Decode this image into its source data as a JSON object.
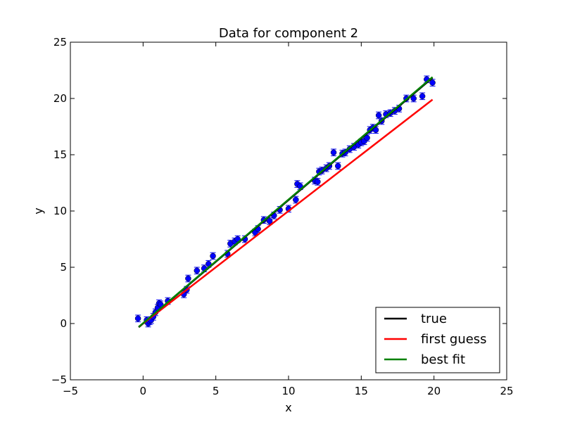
{
  "chart_data": {
    "type": "scatter",
    "title": "Data for component 2",
    "xlabel": "x",
    "ylabel": "y",
    "xlim": [
      -5,
      25
    ],
    "ylim": [
      -5,
      25
    ],
    "xticks": [
      "−5",
      "0",
      "5",
      "10",
      "15",
      "20",
      "25"
    ],
    "yticks": [
      "−5",
      "0",
      "5",
      "10",
      "15",
      "20",
      "25"
    ],
    "xtick_values": [
      -5,
      0,
      5,
      10,
      15,
      20,
      25
    ],
    "ytick_values": [
      -5,
      0,
      5,
      10,
      15,
      20,
      25
    ],
    "grid": false,
    "legend_position": "lower-right",
    "points": {
      "color": "#0000ff",
      "error": 0.3,
      "x": [
        -0.35,
        0.25,
        0.35,
        0.45,
        0.55,
        0.7,
        0.85,
        1.0,
        1.1,
        1.2,
        1.7,
        2.8,
        3.0,
        3.1,
        3.7,
        4.2,
        4.5,
        4.8,
        5.8,
        6.0,
        6.3,
        6.5,
        7.0,
        7.7,
        7.9,
        8.3,
        8.7,
        9.0,
        9.4,
        10.0,
        10.5,
        10.6,
        10.8,
        11.8,
        12.0,
        12.1,
        12.3,
        12.6,
        12.8,
        13.1,
        13.4,
        13.7,
        13.9,
        14.2,
        14.5,
        14.8,
        15.0,
        15.2,
        15.4,
        15.6,
        15.8,
        16.0,
        16.2,
        16.4,
        16.7,
        17.0,
        17.3,
        17.6,
        18.1,
        18.6,
        19.2,
        19.5,
        19.9
      ],
      "y": [
        0.45,
        0.3,
        0.0,
        0.2,
        0.3,
        0.6,
        1.0,
        1.4,
        1.8,
        1.7,
        2.0,
        2.6,
        3.0,
        4.0,
        4.7,
        4.9,
        5.3,
        6.0,
        6.2,
        7.1,
        7.3,
        7.5,
        7.5,
        8.1,
        8.4,
        9.2,
        9.1,
        9.6,
        10.1,
        10.2,
        11.0,
        12.4,
        12.2,
        12.7,
        12.6,
        13.5,
        13.6,
        13.8,
        14.0,
        15.2,
        14.0,
        15.1,
        15.2,
        15.5,
        15.7,
        15.9,
        16.1,
        16.2,
        16.5,
        17.2,
        17.4,
        17.2,
        18.5,
        18.0,
        18.6,
        18.7,
        18.9,
        19.1,
        20.0,
        20.0,
        20.2,
        21.7,
        21.4
      ]
    },
    "series": [
      {
        "name": "true",
        "color": "#000000",
        "x": [
          -0.3,
          19.9
        ],
        "y": [
          -0.33,
          21.84
        ]
      },
      {
        "name": "first guess",
        "color": "#ff0000",
        "x": [
          -0.3,
          19.9
        ],
        "y": [
          -0.3,
          19.9
        ]
      },
      {
        "name": "best fit",
        "color": "#008000",
        "x": [
          -0.3,
          19.9
        ],
        "y": [
          -0.3,
          21.9
        ]
      }
    ]
  }
}
